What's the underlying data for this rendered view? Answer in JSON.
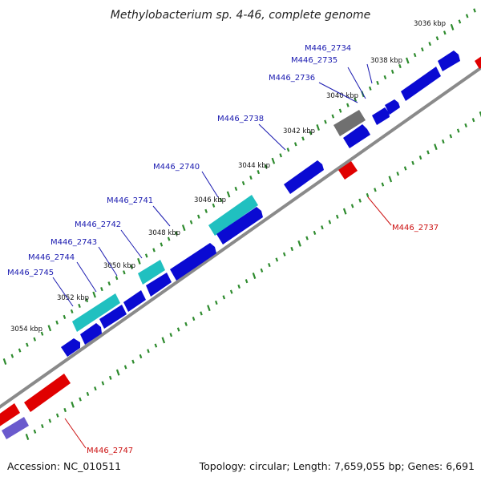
{
  "title": "Methylobacterium sp. 4-46, complete genome",
  "accession": "Accession: NC_010511",
  "summary": "Topology: circular; Length: 7,659,055 bp; Genes: 6,691",
  "colors": {
    "backbone": "#8a8a8a",
    "tick": "#2e8b2e",
    "forward_gene": "#0a0ad2",
    "reverse_gene": "#e00000",
    "rna_gene": "#20c0c0",
    "pseudo_gene": "#707070",
    "other_gene": "#6a5acd",
    "forward_label": "#1a1ab0",
    "reverse_label": "#cc1010"
  },
  "ticks": [
    {
      "label": "3036 kbp"
    },
    {
      "label": "3038 kbp"
    },
    {
      "label": "3040 kbp"
    },
    {
      "label": "3042 kbp"
    },
    {
      "label": "3044 kbp"
    },
    {
      "label": "3046 kbp"
    },
    {
      "label": "3048 kbp"
    },
    {
      "label": "3050 kbp"
    },
    {
      "label": "3052 kbp"
    },
    {
      "label": "3054 kbp"
    }
  ],
  "gene_labels": [
    {
      "text": "M446_2734",
      "strand": "forward"
    },
    {
      "text": "M446_2735",
      "strand": "forward"
    },
    {
      "text": "M446_2736",
      "strand": "forward"
    },
    {
      "text": "M446_2738",
      "strand": "forward"
    },
    {
      "text": "M446_2740",
      "strand": "forward"
    },
    {
      "text": "M446_2741",
      "strand": "forward"
    },
    {
      "text": "M446_2742",
      "strand": "forward"
    },
    {
      "text": "M446_2743",
      "strand": "forward"
    },
    {
      "text": "M446_2744",
      "strand": "forward"
    },
    {
      "text": "M446_2745",
      "strand": "forward"
    },
    {
      "text": "M446_2737",
      "strand": "reverse"
    },
    {
      "text": "M446_2747",
      "strand": "reverse"
    }
  ]
}
